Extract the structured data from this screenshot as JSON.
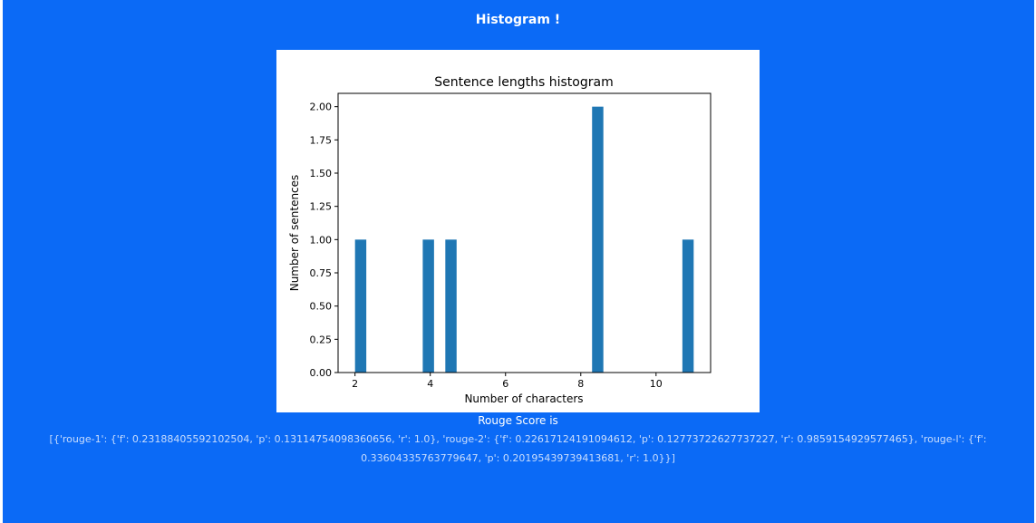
{
  "page": {
    "title": "Histogram !",
    "rouge_heading": "Rouge Score is",
    "rouge_text": "[{'rouge-1': {'f': 0.23188405592102504, 'p': 0.13114754098360656, 'r': 1.0}, 'rouge-2': {'f': 0.22617124191094612, 'p': 0.12773722627737227, 'r': 0.9859154929577465}, 'rouge-l': {'f': 0.33604335763779647, 'p': 0.20195439739413681, 'r': 1.0}}]"
  },
  "colors": {
    "page_background": "#0b6af6",
    "bar": "#1f77b4"
  },
  "chart_data": {
    "type": "bar",
    "title": "Sentence lengths histogram",
    "xlabel": "Number of characters",
    "ylabel": "Number of sentences",
    "xlim": [
      1.55,
      11.45
    ],
    "ylim": [
      0,
      2.1
    ],
    "xticks": [
      2,
      4,
      6,
      8,
      10
    ],
    "xtick_labels": [
      "2",
      "4",
      "6",
      "8",
      "10"
    ],
    "yticks": [
      0,
      0.25,
      0.5,
      0.75,
      1.0,
      1.25,
      1.5,
      1.75,
      2.0
    ],
    "ytick_labels": [
      "0.00",
      "0.25",
      "0.50",
      "0.75",
      "1.00",
      "1.25",
      "1.50",
      "1.75",
      "2.00"
    ],
    "bar_width": 0.3,
    "bins": [
      {
        "x": 2.15,
        "value": 1
      },
      {
        "x": 3.95,
        "value": 1
      },
      {
        "x": 4.55,
        "value": 1
      },
      {
        "x": 8.45,
        "value": 2
      },
      {
        "x": 10.85,
        "value": 1
      }
    ],
    "grid": false,
    "legend": "none"
  }
}
